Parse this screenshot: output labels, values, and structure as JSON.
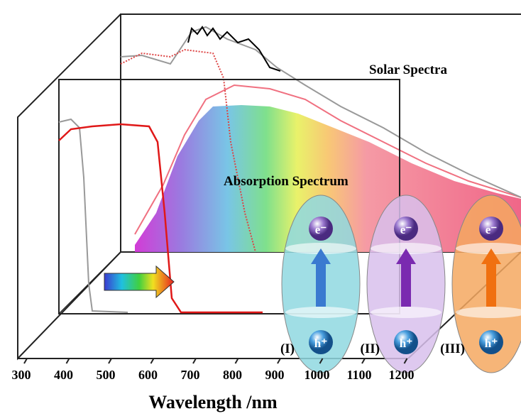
{
  "labels": {
    "solar": "Solar Spectra",
    "absorption": "Absorption Spectrum"
  },
  "x_axis": {
    "title": "Wavelength /nm",
    "ticks": [
      300,
      400,
      500,
      600,
      700,
      800,
      900,
      1000,
      1100,
      1200
    ]
  },
  "capsules": [
    {
      "label": "(I)",
      "electron": "e⁻",
      "hole": "h⁺"
    },
    {
      "label": "(II)",
      "electron": "e⁻",
      "hole": "h⁺"
    },
    {
      "label": "(III)",
      "electron": "e⁻",
      "hole": "h⁺"
    }
  ]
}
